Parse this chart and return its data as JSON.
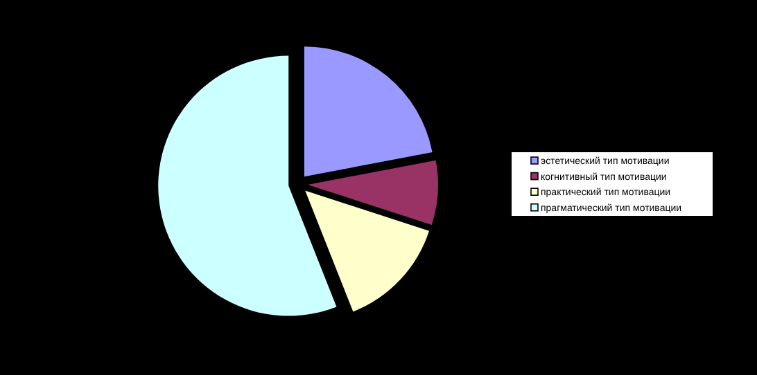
{
  "chart_data": {
    "type": "pie",
    "categories": [
      "эстетический тип мотивации",
      "когнитивный тип мотивации",
      "практический тип мотивации",
      "прагматический тип мотивации"
    ],
    "values": [
      22,
      8,
      14,
      56
    ],
    "colors": [
      "#9999ff",
      "#993366",
      "#ffffcc",
      "#ccffff"
    ],
    "legend": "right"
  }
}
